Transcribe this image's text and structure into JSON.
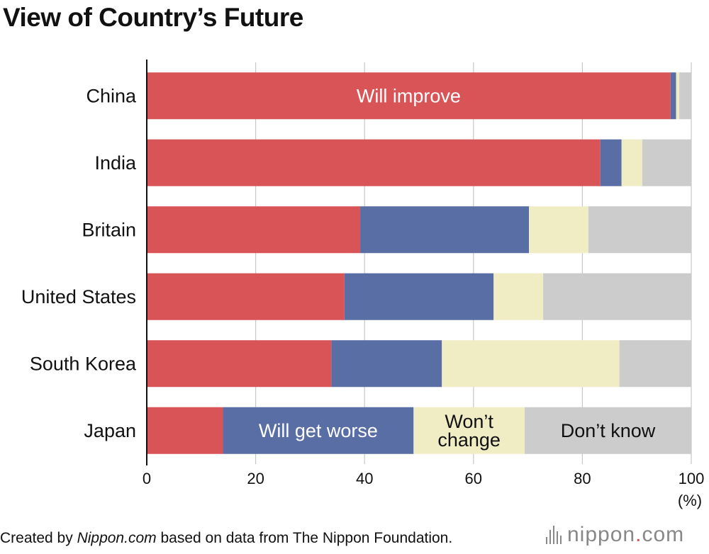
{
  "title": "View of Country’s Future",
  "footer": {
    "prefix": "Created by ",
    "site": "Nippon.com",
    "suffix": " based on data from The Nippon Foundation."
  },
  "logo": {
    "before_dot": "nippon",
    "dot": ".",
    "after_dot": "com"
  },
  "chart_data": {
    "type": "bar",
    "orientation": "horizontal",
    "stacked": true,
    "title": "View of Country’s Future",
    "xlabel": "(%)",
    "xlim": [
      0,
      100
    ],
    "xticks": [
      0,
      20,
      40,
      60,
      80,
      100
    ],
    "grid": true,
    "categories": [
      "China",
      "India",
      "Britain",
      "United States",
      "South Korea",
      "Japan"
    ],
    "series": [
      {
        "name": "Will improve",
        "color": "#d95457",
        "values": [
          96.2,
          83.3,
          39.2,
          36.3,
          33.9,
          14.0
        ]
      },
      {
        "name": "Will get worse",
        "color": "#5a6ea6",
        "values": [
          1.0,
          3.9,
          31.0,
          27.4,
          20.3,
          35.0
        ]
      },
      {
        "name": "Won’t change",
        "color": "#f0edc4",
        "values": [
          0.6,
          3.8,
          10.9,
          9.1,
          32.6,
          20.4
        ]
      },
      {
        "name": "Don’t know",
        "color": "#cccccc",
        "values": [
          2.2,
          9.0,
          18.9,
          27.2,
          13.2,
          30.6
        ]
      }
    ],
    "annotations": [
      {
        "series": 0,
        "category": "China",
        "lines": [
          "Will improve"
        ],
        "color": "#ffffff"
      },
      {
        "series": 1,
        "category": "Japan",
        "lines": [
          "Will get worse"
        ],
        "color": "#ffffff"
      },
      {
        "series": 2,
        "category": "Japan",
        "lines": [
          "Won’t",
          "change"
        ],
        "color": "#111111"
      },
      {
        "series": 3,
        "category": "Japan",
        "lines": [
          "Don’t know"
        ],
        "color": "#111111"
      }
    ]
  }
}
